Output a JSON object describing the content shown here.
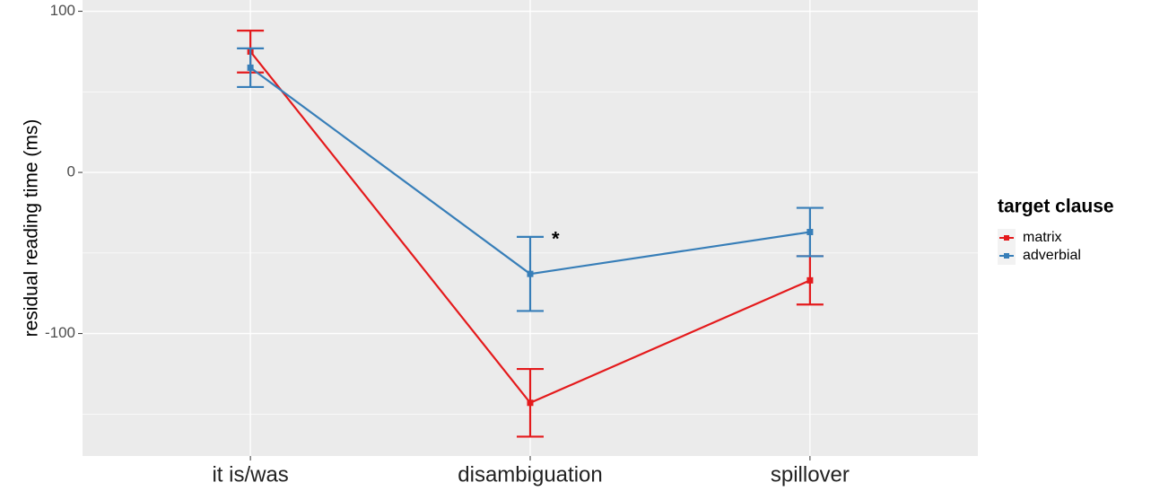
{
  "chart_data": {
    "type": "line",
    "y_label": "residual reading time (ms)",
    "categories": [
      "it is/was",
      "disambiguation",
      "spillover"
    ],
    "series": [
      {
        "name": "matrix",
        "color": "#e41a1c",
        "values": [
          75,
          -143,
          -67
        ],
        "errors": [
          13,
          21,
          15
        ]
      },
      {
        "name": "adverbial",
        "color": "#377eb8",
        "values": [
          65,
          -63,
          -37
        ],
        "errors": [
          12,
          23,
          15
        ]
      }
    ],
    "ylim": [
      -176,
      107
    ],
    "yticks": [
      -100,
      0,
      100
    ],
    "minor_yticks": [
      -150,
      -50,
      50
    ],
    "grid": true,
    "legend_title": "target clause",
    "legend_position": "right",
    "annotation": "*"
  }
}
